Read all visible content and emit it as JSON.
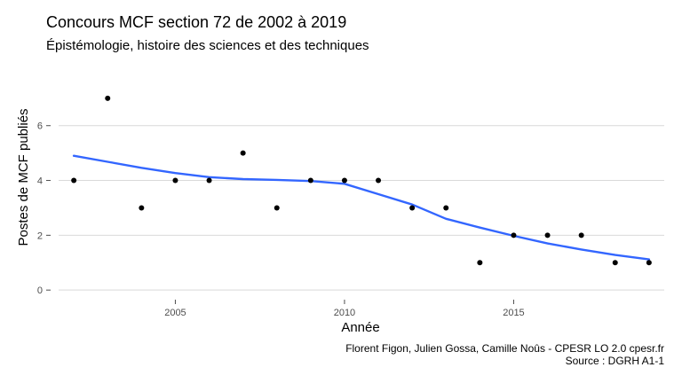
{
  "chart_data": {
    "type": "scatter",
    "title": "Concours MCF section 72 de 2002 à 2019",
    "subtitle": "Épistémologie, histoire des sciences et des techniques",
    "xlabel": "Année",
    "ylabel": "Postes de MCF publiés",
    "caption_lines": [
      "Florent Figon, Julien Gossa, Camille Noûs - CPESR LO 2.0 cpesr.fr",
      "Source : DGRH A1-1"
    ],
    "xlim": [
      2001.55,
      2019.45
    ],
    "ylim": [
      -0.35,
      7.35
    ],
    "x_ticks": [
      2005,
      2010,
      2015
    ],
    "y_ticks": [
      0,
      2,
      4,
      6
    ],
    "grid": true,
    "colors": {
      "points": "#000000",
      "trend": "#3366FF",
      "grid": "#d9d9d9"
    },
    "series": [
      {
        "values": [
          {
            "x": 2002,
            "y": 4
          },
          {
            "x": 2003,
            "y": 7
          },
          {
            "x": 2004,
            "y": 3
          },
          {
            "x": 2005,
            "y": 4
          },
          {
            "x": 2006,
            "y": 4
          },
          {
            "x": 2007,
            "y": 5
          },
          {
            "x": 2008,
            "y": 3
          },
          {
            "x": 2009,
            "y": 4
          },
          {
            "x": 2010,
            "y": 4
          },
          {
            "x": 2011,
            "y": 4
          },
          {
            "x": 2012,
            "y": 3
          },
          {
            "x": 2013,
            "y": 3
          },
          {
            "x": 2014,
            "y": 1
          },
          {
            "x": 2015,
            "y": 2
          },
          {
            "x": 2016,
            "y": 2
          },
          {
            "x": 2017,
            "y": 2
          },
          {
            "x": 2018,
            "y": 1
          },
          {
            "x": 2019,
            "y": 1
          }
        ]
      }
    ],
    "trend": [
      {
        "x": 2002,
        "y": 4.9
      },
      {
        "x": 2003,
        "y": 4.68
      },
      {
        "x": 2004,
        "y": 4.46
      },
      {
        "x": 2005,
        "y": 4.27
      },
      {
        "x": 2006,
        "y": 4.12
      },
      {
        "x": 2007,
        "y": 4.05
      },
      {
        "x": 2008,
        "y": 4.02
      },
      {
        "x": 2009,
        "y": 3.98
      },
      {
        "x": 2010,
        "y": 3.88
      },
      {
        "x": 2011,
        "y": 3.5
      },
      {
        "x": 2012,
        "y": 3.12
      },
      {
        "x": 2013,
        "y": 2.6
      },
      {
        "x": 2014,
        "y": 2.28
      },
      {
        "x": 2015,
        "y": 1.98
      },
      {
        "x": 2016,
        "y": 1.7
      },
      {
        "x": 2017,
        "y": 1.48
      },
      {
        "x": 2018,
        "y": 1.28
      },
      {
        "x": 2019,
        "y": 1.12
      }
    ]
  }
}
